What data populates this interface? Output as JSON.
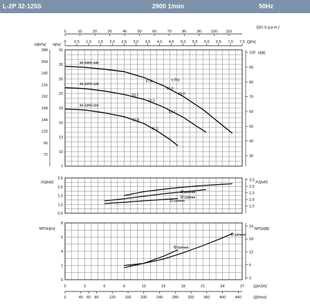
{
  "header": {
    "model": "L-2P 32-125S",
    "speed": "2900 1/min",
    "frequency": "50Hz"
  },
  "colors": {
    "header_bg": "#7c92aa",
    "header_text": "#ffffff",
    "line": "#111111",
    "grid": "#444444"
  },
  "chart_data": [
    {
      "type": "line",
      "name": "head-curves",
      "title": "",
      "top_axes": [
        {
          "label": "Q[U.S.g.p.m.]",
          "ticks": [
            "0",
            "10",
            "20",
            "30",
            "40",
            "50",
            "60",
            "70",
            "80",
            "90",
            "100",
            "110"
          ],
          "tick_values": [
            0,
            10,
            20,
            30,
            40,
            50,
            60,
            70,
            80,
            90,
            100,
            110
          ]
        },
        {
          "label": "Q[l/s]",
          "ticks": [
            "0",
            "0.5",
            "1,0",
            "1,5",
            "2,0",
            "2,5",
            "3,0",
            "3,5",
            "4,0",
            "4,5",
            "5,0",
            "5,5",
            "6,0",
            "6,5",
            "7,0",
            "7,5"
          ],
          "tick_values": [
            0,
            0.5,
            1,
            1.5,
            2,
            2.5,
            3,
            3.5,
            4,
            4.5,
            5,
            5.5,
            6,
            6.5,
            7,
            7.5
          ]
        }
      ],
      "y_axes_left": [
        {
          "label": "H[kPa]",
          "ticks": [
            "288",
            "264",
            "240",
            "216",
            "192",
            "168",
            "144",
            "120",
            "96",
            "72"
          ]
        },
        {
          "label": "H[m]",
          "ticks": [
            "31",
            "28",
            "25",
            "22",
            "19",
            "16",
            "13",
            "10",
            "7"
          ],
          "tick_values": [
            31,
            28,
            25,
            22,
            19,
            16,
            13,
            10,
            7
          ]
        }
      ],
      "y_axis_right": {
        "label": "H[ft]",
        "ticks": [
          "100",
          "90",
          "80",
          "70",
          "60",
          "50",
          "40",
          "30"
        ]
      },
      "x_unit": "m3/h",
      "y_unit": "m",
      "xlim": [
        0,
        27
      ],
      "ylim": [
        7,
        31
      ],
      "series": [
        {
          "name": "32-125S-140",
          "x": [
            0,
            3,
            6,
            9,
            12,
            15,
            18,
            21,
            24,
            25.5
          ],
          "y": [
            27.6,
            27.4,
            27.0,
            26.5,
            25.3,
            23.6,
            21.4,
            18.7,
            15.4,
            13.8
          ]
        },
        {
          "name": "32-125S-128",
          "x": [
            0,
            3,
            6,
            9,
            12,
            15,
            18,
            20,
            21.5
          ],
          "y": [
            23.2,
            23.0,
            22.5,
            21.8,
            20.8,
            19.2,
            17.1,
            15.3,
            14.0
          ]
        },
        {
          "name": "32-125S-110",
          "x": [
            0,
            3,
            6,
            9,
            12,
            14,
            16,
            17.2
          ],
          "y": [
            18.8,
            18.6,
            18.0,
            17.2,
            15.8,
            14.3,
            12.5,
            11.2
          ]
        }
      ],
      "annotations": [
        {
          "text": "57,4",
          "x": 12.8,
          "y": 24.3
        },
        {
          "text": "η [%]",
          "x": 16.8,
          "y": 24.6
        },
        {
          "text": "60,9",
          "x": 16.0,
          "y": 22.8
        },
        {
          "text": "59,0",
          "x": 17.8,
          "y": 21.7
        },
        {
          "text": "53,7",
          "x": 10.7,
          "y": 21.4
        },
        {
          "text": "55,5",
          "x": 13.2,
          "y": 20.2
        },
        {
          "text": "53,7",
          "x": 16.3,
          "y": 17.9
        },
        {
          "text": "50,8",
          "x": 10.8,
          "y": 16.3
        },
        {
          "text": "47,2",
          "x": 13.7,
          "y": 14.5
        }
      ],
      "grid": true
    },
    {
      "type": "line",
      "name": "power-curves",
      "title": "",
      "y_axis_left": {
        "label": "P2[kW]",
        "ticks": [
          "2,5",
          "2,0",
          "1,5",
          "1,0",
          "0,5"
        ],
        "tick_values": [
          2.5,
          2.0,
          1.5,
          1.0,
          0.5
        ]
      },
      "y_axis_right": {
        "label": "P2[HP]",
        "ticks": [
          "3,0",
          "2,5",
          "2,0",
          "1,5",
          "1,0"
        ]
      },
      "xlim": [
        0,
        27
      ],
      "ylim": [
        0.5,
        2.5
      ],
      "series": [
        {
          "name": "140mm",
          "x": [
            9,
            12,
            15,
            18,
            21,
            24,
            25.5
          ],
          "y": [
            1.5,
            1.72,
            1.86,
            1.98,
            2.07,
            2.14,
            2.17
          ]
        },
        {
          "name": "128mm",
          "x": [
            6,
            9,
            12,
            15,
            18,
            20,
            21.5
          ],
          "y": [
            1.2,
            1.32,
            1.46,
            1.6,
            1.71,
            1.78,
            1.84
          ]
        },
        {
          "name": "110mm",
          "x": [
            6,
            9,
            12,
            15,
            17.2
          ],
          "y": [
            1.05,
            1.12,
            1.2,
            1.28,
            1.34
          ]
        }
      ],
      "legend_labels": [
        "140mm",
        "128mm",
        "110mm"
      ],
      "grid": true
    },
    {
      "type": "line",
      "name": "npsh-curves",
      "title": "",
      "y_axis_left": {
        "label": "NPSH[m]",
        "ticks": [
          "8",
          "6",
          "4",
          "2",
          "0"
        ],
        "tick_values": [
          8,
          6,
          4,
          2,
          0
        ]
      },
      "y_axis_right": {
        "label": "NPSH[ft]",
        "ticks": [
          "24",
          "18",
          "12",
          "6",
          "0"
        ]
      },
      "bottom_axes": [
        {
          "label": "Q[m3/h]",
          "ticks": [
            "0",
            "3",
            "6",
            "9",
            "12",
            "15",
            "18",
            "21",
            "24",
            "27"
          ],
          "tick_values": [
            0,
            3,
            6,
            9,
            12,
            15,
            18,
            21,
            24,
            27
          ]
        },
        {
          "label": "Q[l/min]",
          "ticks": [
            "0",
            "40",
            "60",
            "80",
            "120",
            "160",
            "200",
            "240",
            "280",
            "320",
            "360",
            "400",
            "440"
          ]
        }
      ],
      "xlim": [
        0,
        27
      ],
      "ylim": [
        0,
        8
      ],
      "series": [
        {
          "name": "140mm",
          "x": [
            9,
            12,
            15,
            18,
            21,
            24,
            25.5
          ],
          "y": [
            2.0,
            2.3,
            2.9,
            3.8,
            4.8,
            5.9,
            6.5
          ]
        },
        {
          "name": "110mm",
          "x": [
            9,
            12,
            15,
            17.2
          ],
          "y": [
            1.7,
            2.3,
            3.3,
            4.2
          ]
        }
      ],
      "legend_labels": [
        "140mm",
        "110mm"
      ],
      "grid": true
    }
  ]
}
